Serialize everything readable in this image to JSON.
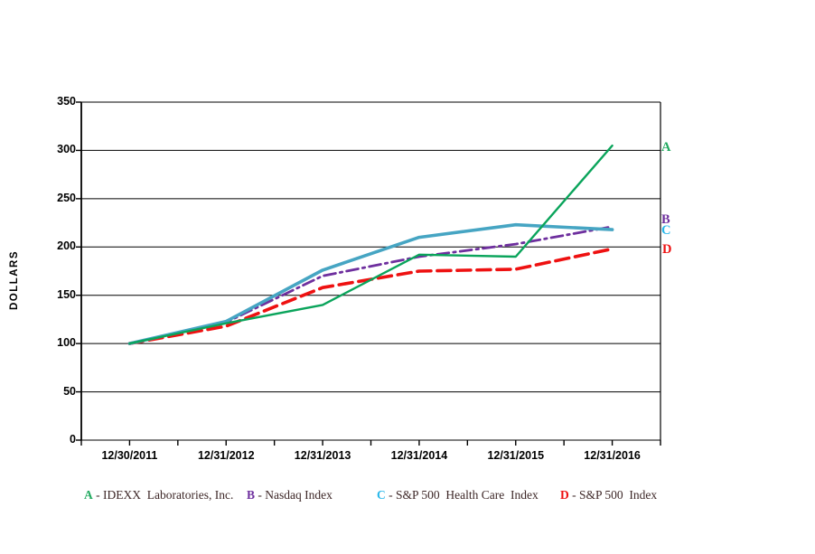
{
  "page": {
    "background": "#ffffff"
  },
  "chart_data": {
    "type": "line",
    "title": "",
    "xlabel": "",
    "ylabel": "DOLLARS",
    "ylim": [
      0,
      350
    ],
    "y_tick_step": 50,
    "y_tick_labels": [
      "0",
      "50",
      "100",
      "150",
      "200",
      "250",
      "300",
      "350"
    ],
    "grid": "horizontal",
    "legend_position": "bottom",
    "legend_separator": "-",
    "categories": [
      "12/30/2011",
      "12/31/2012",
      "12/31/2013",
      "12/31/2014",
      "12/31/2015",
      "12/31/2016"
    ],
    "series": [
      {
        "id": "A",
        "name": "IDEXX  Laboratories, Inc.",
        "color": "#0aa45b",
        "label_color": "#21a95f",
        "style": "solid",
        "values": [
          100,
          121,
          140,
          192,
          190,
          305
        ]
      },
      {
        "id": "B",
        "name": "Nasdaq Index",
        "color": "#6e2f9e",
        "label_color": "#6e2f9e",
        "style": "dash-dot",
        "values": [
          100,
          122,
          170,
          190,
          203,
          221
        ]
      },
      {
        "id": "C",
        "name": "S&P 500  Health Care  Index",
        "color": "#46a5c3",
        "label_color": "#29b7ea",
        "style": "solid",
        "values": [
          100,
          123,
          176,
          210,
          223,
          218
        ]
      },
      {
        "id": "D",
        "name": "S&P 500  Index",
        "color": "#ee1111",
        "label_color": "#ee1111",
        "style": "dashed",
        "values": [
          100,
          118,
          158,
          175,
          177,
          198
        ]
      }
    ]
  }
}
